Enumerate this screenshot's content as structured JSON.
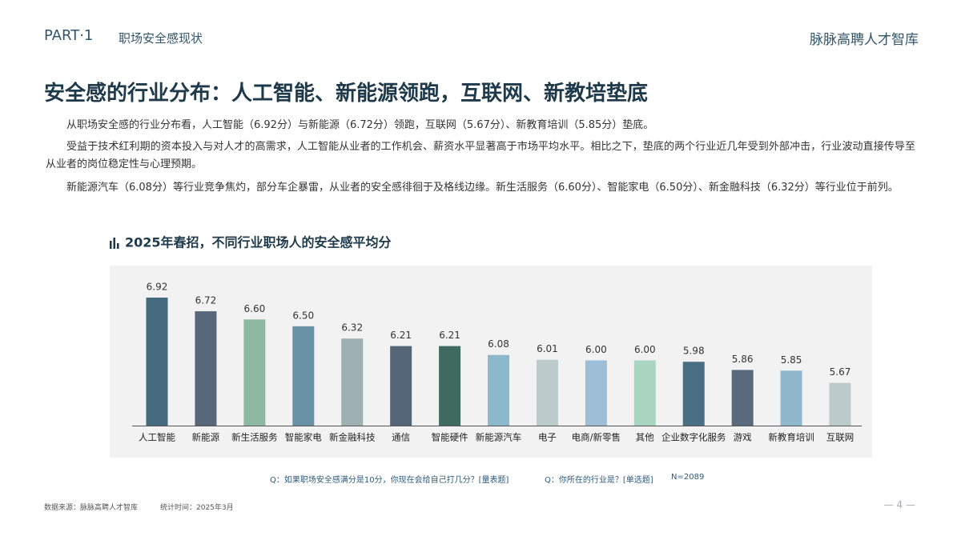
{
  "header": {
    "part": "PART·1",
    "section": "职场安全感现状",
    "brand": "脉脉高聘人才智库"
  },
  "title": "安全感的行业分布：人工智能、新能源领跑，互联网、新教培垫底",
  "paragraphs": [
    "从职场安全感的行业分布看，人工智能（6.92分）与新能源（6.72分）领跑，互联网（5.67分）、新教育培训（5.85分）垫底。",
    "受益于技术红利期的资本投入与对人才的高需求，人工智能从业者的工作机会、薪资水平显著高于市场平均水平。相比之下，垫底的两个行业近几年受到外部冲击，行业波动直接传导至从业者的岗位稳定性与心理预期。",
    "新能源汽车（6.08分）等行业竞争焦灼，部分车企暴雷，从业者的安全感徘徊于及格线边缘。新生活服务（6.60分）、智能家电（6.50分）、新金融科技（6.32分）等行业位于前列。"
  ],
  "chart_data": {
    "type": "bar",
    "title": "2025年春招，不同行业职场人的安全感平均分",
    "categories": [
      "人工智能",
      "新能源",
      "新生活服务",
      "智能家电",
      "新金融科技",
      "通信",
      "智能硬件",
      "新能源汽车",
      "电子",
      "电商/新零售",
      "其他",
      "企业数字化服务",
      "游戏",
      "新教育培训",
      "互联网"
    ],
    "values": [
      6.92,
      6.72,
      6.6,
      6.5,
      6.32,
      6.21,
      6.21,
      6.08,
      6.01,
      6.0,
      6.0,
      5.98,
      5.86,
      5.85,
      5.67
    ],
    "value_labels": [
      "6.92",
      "6.72",
      "6.60",
      "6.50",
      "6.32",
      "6.21",
      "6.21",
      "6.08",
      "6.01",
      "6.00",
      "6.00",
      "5.98",
      "5.86",
      "5.85",
      "5.67"
    ],
    "colors": [
      "#466a7e",
      "#58687a",
      "#8db8a2",
      "#6892a6",
      "#9fb0b3",
      "#566679",
      "#3f6a60",
      "#8cb8cc",
      "#bccacb",
      "#9ebdd6",
      "#a9d5c0",
      "#4a6e82",
      "#5a6a7d",
      "#8fb8cc",
      "#bccacb"
    ]
  },
  "footnotes": [
    "Q：如果职场安全感满分是10分，你现在会给自己打几分？[量表题]",
    "Q：你所在的行业是？[单选题]",
    "N=2089"
  ],
  "source": [
    "数据来源：脉脉高聘人才智库",
    "统计时间：2025年3月"
  ],
  "page_number": "— 4 —"
}
